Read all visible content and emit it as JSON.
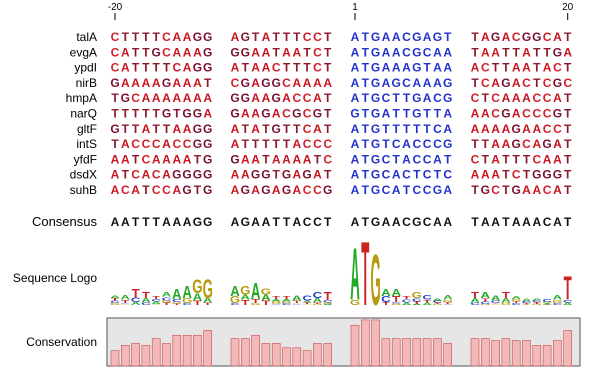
{
  "alignment": {
    "ruler": [
      -20,
      1,
      20
    ],
    "rows": [
      {
        "name": "talA",
        "seq": "CTTTTCAAGGAGTATTTCCTATGAACGAGTTAGACGGCAT"
      },
      {
        "name": "evgA",
        "seq": "CATTGCAAAGGGAATAATCTATGAACGCAATAATTATTGA"
      },
      {
        "name": "ypdI",
        "seq": "CATTTTCAGGATAACTTTCTATGAAAGTAAACTTAATACT"
      },
      {
        "name": "nirB",
        "seq": "GAAAAGAAATCGAGGCAAAAATGAGCAAAGTCAGACTCGC"
      },
      {
        "name": "hmpA",
        "seq": "TGCAAAAAAAGGAAGACCATATGCTTGACGCTCAAACCAT"
      },
      {
        "name": "narQ",
        "seq": "TTTTTGTGGAGAAGACGCGTGTGATTGTTAAACGACCCGT"
      },
      {
        "name": "gltF",
        "seq": "GTTATTAAGGATATGTTCATATGTTTTTCAAAAAGAACCT"
      },
      {
        "name": "intS",
        "seq": "TACCCACCGGATTTTTACCCATGTCACCCGTTAAGCAGAT"
      },
      {
        "name": "yfdF",
        "seq": "AATCAAAATGGAATAAAATCATGCTACCATCTATTTCAAT"
      },
      {
        "name": "dsdX",
        "seq": "ATCACAGGGGAAGGTGAGATATGCACTCTCAAATCTGGGT"
      },
      {
        "name": "suhB",
        "seq": "ACATCCAGTGAGAGAGACCGATGCATCCGATGCTGAACAT"
      }
    ],
    "consensus": {
      "name": "Consensus",
      "seq": "AATTTAAAGGAGAATTACCTATGAACGCAATAATAAACAT"
    },
    "letter_colors": {
      "A": "#c8141e",
      "C": "#d0202a",
      "G": "#7a1030",
      "T": "#8a1a2a"
    },
    "core_color": "#2233cc"
  },
  "logo": {
    "label": "Sequence Logo",
    "ylim": [
      0,
      2
    ],
    "values": [
      0.3,
      0.3,
      0.5,
      0.4,
      0.3,
      0.4,
      0.5,
      0.6,
      0.8,
      0.8,
      0.6,
      0.6,
      0.7,
      0.5,
      0.3,
      0.3,
      0.3,
      0.3,
      0.4,
      0.4,
      1.8,
      2.0,
      1.6,
      0.5,
      0.5,
      0.3,
      0.4,
      0.3,
      0.2,
      0.3,
      0.4,
      0.4,
      0.3,
      0.4,
      0.3,
      0.2,
      0.2,
      0.2,
      0.3,
      0.9
    ],
    "colors": {
      "A": "#22aa22",
      "C": "#2244cc",
      "G": "#b89a10",
      "T": "#cc2222"
    }
  },
  "conservation": {
    "label": "Conservation",
    "ylim": [
      0,
      1
    ],
    "color": "#f4b8b8",
    "values": [
      0.32,
      0.43,
      0.47,
      0.43,
      0.57,
      0.47,
      0.64,
      0.64,
      0.64,
      0.74,
      0.57,
      0.57,
      0.64,
      0.47,
      0.47,
      0.38,
      0.38,
      0.32,
      0.47,
      0.47,
      0.85,
      0.96,
      0.96,
      0.57,
      0.57,
      0.57,
      0.57,
      0.57,
      0.57,
      0.47,
      0.57,
      0.57,
      0.53,
      0.57,
      0.53,
      0.53,
      0.43,
      0.43,
      0.53,
      0.74
    ]
  }
}
